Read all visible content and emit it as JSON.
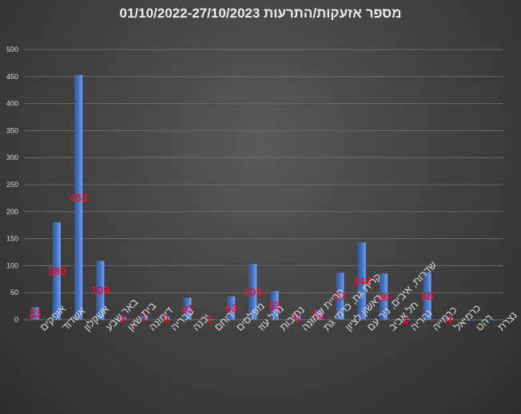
{
  "chart_data": {
    "type": "bar",
    "title": "מספר אזעקות/התרעות 01/10/2022-27/10/2023",
    "xlabel": "",
    "ylabel": "",
    "ylim": [
      0,
      500
    ],
    "yticks": [
      0,
      50,
      100,
      150,
      200,
      250,
      300,
      350,
      400,
      450,
      500
    ],
    "grid": true,
    "legend": "none",
    "bar_color": "#4472c4",
    "label_color": "#e8102a",
    "categories": [
      "אופקים",
      "אשדוד",
      "אשקלון",
      "באר שבע",
      "בית שאן",
      "דימונה",
      "טבריה",
      "יבנה",
      "ירוחם",
      "מפלסים",
      "נחל עוז",
      "נתיבות",
      "קריית שמונה",
      "קרית גת, כרמי גת",
      "ראשון לציון",
      "שדרות, איבים, ניר עם",
      "תל אביב",
      "נהריה",
      "כרמייה",
      "כרמיאל",
      "רהט",
      "נצרת"
    ],
    "values": [
      23,
      180,
      453,
      109,
      5,
      7,
      6,
      41,
      1,
      43,
      103,
      53,
      8,
      18,
      87,
      143,
      86,
      2,
      88,
      4,
      0,
      0
    ],
    "data_labels": [
      "23",
      "180",
      "453",
      "109",
      "5",
      "7",
      "6",
      "41",
      "1",
      "43",
      "103",
      "53",
      "8",
      "18",
      "87",
      "143",
      "86",
      "2",
      "88",
      "4",
      "",
      ""
    ]
  }
}
